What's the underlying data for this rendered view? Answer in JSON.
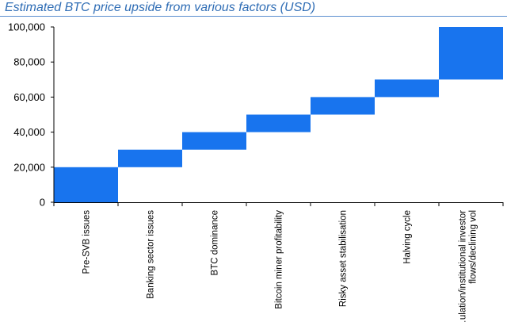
{
  "chart_data": {
    "type": "bar",
    "subtype": "waterfall",
    "title": "Estimated BTC price upside from various factors (USD)",
    "xlabel": "",
    "ylabel": "",
    "ylim": [
      0,
      100000
    ],
    "yticks": [
      0,
      20000,
      40000,
      60000,
      80000,
      100000
    ],
    "ytick_labels": [
      "0",
      "20,000",
      "40,000",
      "60,000",
      "80,000",
      "100,000"
    ],
    "categories": [
      "Pre-SVB issues",
      "Banking sector issues",
      "BTC dominance",
      "Bitcoin miner profitability",
      "Risky asset stabilisation",
      "Halving cycle",
      "...ulation/institutional investor flows/declining vol"
    ],
    "bars": [
      {
        "start": 0,
        "end": 20000
      },
      {
        "start": 20000,
        "end": 30000
      },
      {
        "start": 30000,
        "end": 40000
      },
      {
        "start": 40000,
        "end": 50000
      },
      {
        "start": 50000,
        "end": 60000
      },
      {
        "start": 60000,
        "end": 70000
      },
      {
        "start": 70000,
        "end": 100000
      }
    ],
    "grid": false,
    "legend": "none",
    "colors": {
      "bar": "#1874ee",
      "title": "#2f6db5",
      "axis": "#000000",
      "text": "#000000",
      "rule": "#5b8fd0"
    }
  }
}
